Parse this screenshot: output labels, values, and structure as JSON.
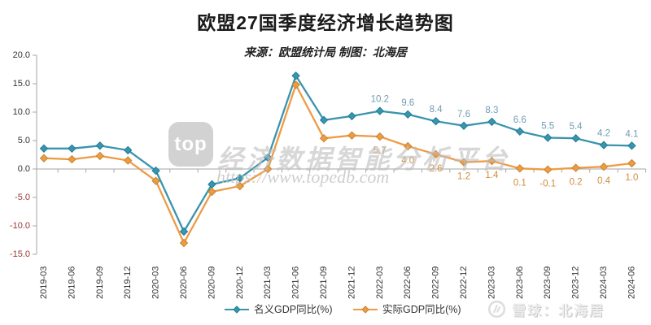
{
  "header": {
    "title": "欧盟27国季度经济增长趋势图",
    "subtitle": "来源：欧盟统计局  制图：北海居"
  },
  "watermark": {
    "logo_text": "top",
    "platform_text": "经济数据智能分析平台",
    "url_text": "https://www.topedb.com"
  },
  "credit": {
    "source_text": "雪球：北海居",
    "logo": "xueqiu-snowball-icon"
  },
  "chart_data": {
    "type": "line",
    "title": "欧盟27国季度经济增长趋势图",
    "subtitle": "来源：欧盟统计局  制图：北海居",
    "xlabel": "",
    "ylabel": "",
    "ylim": [
      -15,
      20
    ],
    "grid": false,
    "legend_position": "bottom",
    "y_tick_labels": [
      "20.0",
      "15.0",
      "10.0",
      "5.0",
      "0.0",
      "-5.0",
      "-10.0",
      "-15.0"
    ],
    "y_tick_values": [
      20,
      15,
      10,
      5,
      0,
      -5,
      -10,
      -15
    ],
    "y_tick_positive_color": "#333333",
    "y_tick_negative_color": "#953735",
    "axis_color": "#a6a6a6",
    "x_tick_label_color": "#333333",
    "categories": [
      "2019-03",
      "2019-06",
      "2019-09",
      "2019-12",
      "2020-03",
      "2020-06",
      "2020-09",
      "2020-12",
      "2021-03",
      "2021-06",
      "2021-09",
      "2021-12",
      "2022-03",
      "2022-06",
      "2022-09",
      "2022-12",
      "2023-03",
      "2023-06",
      "2023-09",
      "2023-12",
      "2024-03",
      "2024-06"
    ],
    "series": [
      {
        "name": "名义GDP同比(%)",
        "color": "#3a94ae",
        "marker_stroke": "#1d7c97",
        "label_color": "#6f9db2",
        "label_side": "above",
        "values": [
          3.6,
          3.6,
          4.1,
          3.3,
          -0.3,
          -11.0,
          -2.7,
          -1.6,
          2.0,
          16.4,
          8.6,
          9.3,
          10.2,
          9.6,
          8.4,
          7.6,
          8.3,
          6.6,
          5.5,
          5.4,
          4.2,
          4.1
        ],
        "labels": [
          null,
          null,
          null,
          null,
          null,
          null,
          null,
          null,
          null,
          null,
          null,
          null,
          "10.2",
          "9.6",
          "8.4",
          "7.6",
          "8.3",
          "6.6",
          "5.5",
          "5.4",
          "4.2",
          "4.1"
        ]
      },
      {
        "name": "实际GDP同比(%)",
        "color": "#ee9b44",
        "marker_stroke": "#c8832d",
        "label_color": "#cf8c3b",
        "label_side": "below",
        "values": [
          1.9,
          1.7,
          2.3,
          1.5,
          -2.1,
          -13.0,
          -4.0,
          -3.0,
          0.0,
          14.8,
          5.4,
          5.9,
          5.7,
          4.0,
          2.6,
          1.2,
          1.4,
          0.1,
          -0.1,
          0.2,
          0.4,
          1.0
        ],
        "labels": [
          null,
          null,
          null,
          null,
          null,
          null,
          null,
          null,
          null,
          null,
          null,
          null,
          "5.7",
          "4.0",
          "2.6",
          "1.2",
          "1.4",
          "0.1",
          "-0.1",
          "0.2",
          "0.4",
          "1.0"
        ]
      }
    ]
  }
}
